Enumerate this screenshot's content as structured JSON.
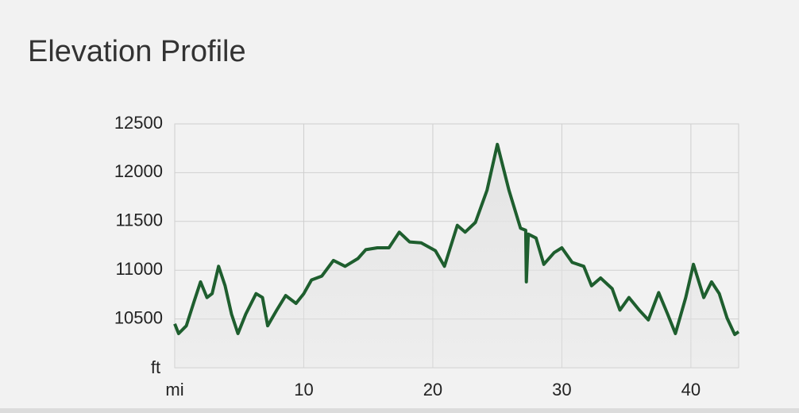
{
  "chart_data": {
    "type": "area-line",
    "title": "Elevation Profile",
    "xlabel": "mi",
    "ylabel": "ft",
    "x": [
      0,
      0.3,
      0.9,
      1.5,
      2,
      2.5,
      2.9,
      3.4,
      3.9,
      4.4,
      4.9,
      5.5,
      6.3,
      6.8,
      7.2,
      7.9,
      8.6,
      9.4,
      10,
      10.6,
      11.4,
      12.3,
      13.2,
      14.2,
      14.8,
      15.7,
      16.6,
      17.4,
      18.2,
      19.1,
      20.2,
      20.9,
      21.9,
      22.5,
      23.3,
      24.2,
      25,
      25.9,
      26.8,
      27.2,
      27.25,
      27.4,
      28,
      28.6,
      29.4,
      30,
      30.8,
      31.7,
      32.3,
      33,
      33.9,
      34.5,
      35.2,
      36,
      36.7,
      37.5,
      38.2,
      38.8,
      39.6,
      40.2,
      41,
      41.6,
      42.2,
      42.8,
      43.4,
      43.7
    ],
    "values": [
      10450,
      10350,
      10430,
      10680,
      10880,
      10720,
      10760,
      11040,
      10840,
      10550,
      10350,
      10550,
      10760,
      10720,
      10430,
      10590,
      10740,
      10660,
      10760,
      10900,
      10940,
      11100,
      11040,
      11120,
      11210,
      11230,
      11230,
      11390,
      11290,
      11280,
      11200,
      11040,
      11460,
      11390,
      11490,
      11820,
      12290,
      11820,
      11430,
      11410,
      10880,
      11370,
      11330,
      11060,
      11180,
      11230,
      11080,
      11040,
      10840,
      10920,
      10810,
      10590,
      10720,
      10590,
      10490,
      10770,
      10550,
      10350,
      10720,
      11060,
      10720,
      10880,
      10760,
      10510,
      10340,
      10370
    ],
    "color": "#1e5e2e",
    "area_color": "#e4e4e4",
    "xlim": [
      0,
      43.7
    ],
    "ylim": [
      10000,
      12500
    ],
    "xticks": [
      10,
      20,
      30,
      40
    ],
    "yticks": [
      10500,
      11000,
      11500,
      12000,
      12500
    ],
    "grid": true
  }
}
